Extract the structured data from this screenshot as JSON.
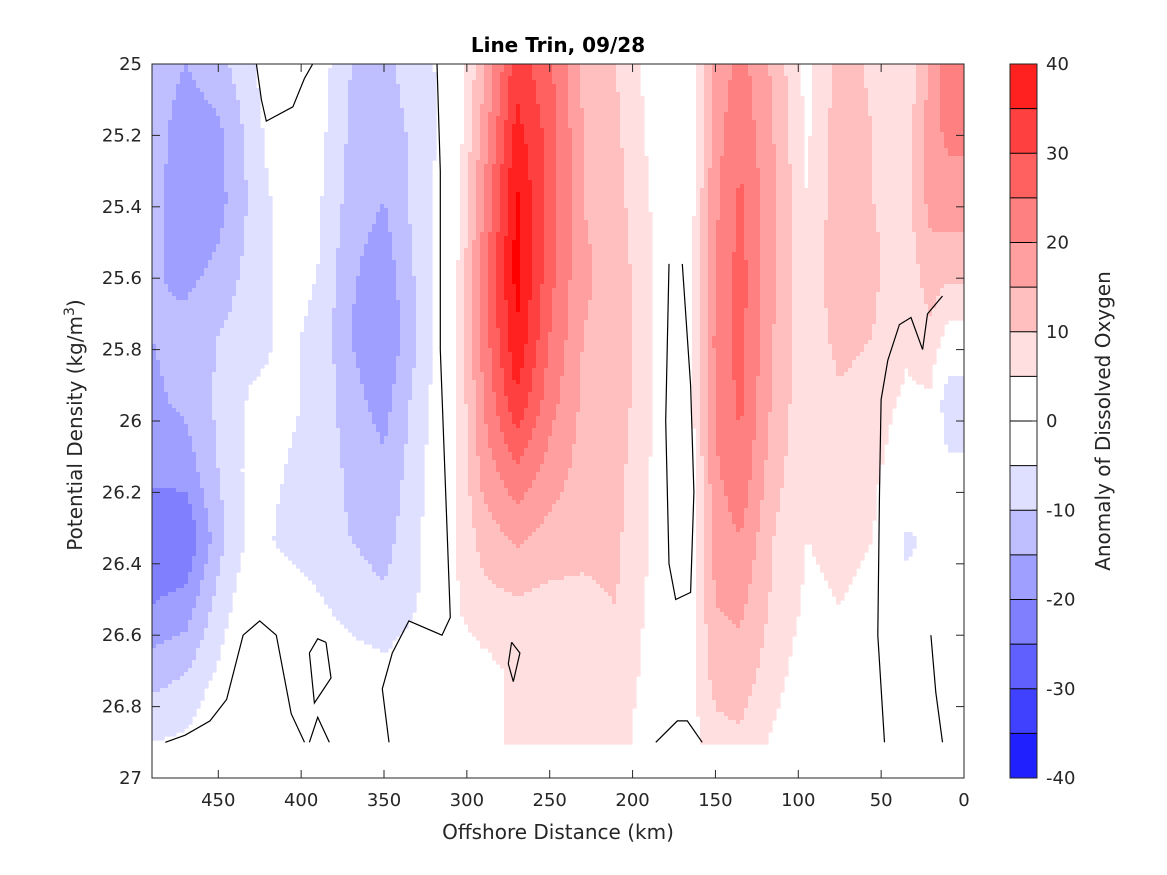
{
  "chart_data": {
    "type": "heatmap",
    "title": "Line Trin, 09/28",
    "xlabel": "Offshore Distance (km)",
    "ylabel": "Potential Density (kg/m",
    "ylabel_sup": "3",
    "ylabel_close": ")",
    "xlim": [
      490,
      0
    ],
    "ylim": [
      25,
      27
    ],
    "x_reversed": true,
    "y_reversed": true,
    "x_ticks": [
      450,
      400,
      350,
      300,
      250,
      200,
      150,
      100,
      50,
      0
    ],
    "y_ticks": [
      25,
      25.2,
      25.4,
      25.6,
      25.8,
      26,
      26.2,
      26.4,
      26.6,
      26.8,
      27
    ],
    "colorbar": {
      "label": "Anomaly of Dissolved Oxygen",
      "limits": [
        -40,
        40
      ],
      "ticks": [
        40,
        30,
        20,
        10,
        0,
        -10,
        -20,
        -30,
        -40
      ],
      "levels": [
        -40,
        -35,
        -30,
        -25,
        -20,
        -15,
        -10,
        -5,
        0,
        5,
        10,
        15,
        20,
        25,
        30,
        35,
        40
      ],
      "colors": [
        "#0000ff",
        "#2020ff",
        "#4040ff",
        "#6060ff",
        "#8080ff",
        "#9f9fff",
        "#bfbfff",
        "#dfdfff",
        "#ffffff",
        "#ffffff",
        "#ffdfdf",
        "#ffbfbf",
        "#ff9f9f",
        "#ff8080",
        "#ff6060",
        "#ff4040",
        "#ff2020",
        "#ff0000"
      ]
    },
    "data_max_density": 26.9,
    "grid": false,
    "columns": [
      {
        "x": 490,
        "values": [
          -12,
          -12,
          -13,
          -14,
          -15,
          -16,
          -19,
          -23,
          -20,
          -12,
          -5
        ]
      },
      {
        "x": 470,
        "values": [
          -15,
          -18,
          -19,
          -17,
          -13,
          -14,
          -18,
          -25,
          -18,
          -10,
          -4
        ]
      },
      {
        "x": 450,
        "values": [
          -12,
          -16,
          -17,
          -14,
          -10,
          -9,
          -10,
          -12,
          -8,
          -4,
          1
        ]
      },
      {
        "x": 430,
        "values": [
          -6,
          -8,
          -9,
          -8,
          -7,
          -4,
          -3,
          -3,
          0,
          2,
          4
        ]
      },
      {
        "x": 410,
        "values": [
          2,
          1,
          -2,
          -3,
          -4,
          -4,
          -5,
          -6,
          -2,
          0,
          1
        ]
      },
      {
        "x": 390,
        "values": [
          -2,
          -3,
          -4,
          -5,
          -6,
          -6,
          -7,
          -8,
          -4,
          -1,
          0
        ]
      },
      {
        "x": 370,
        "values": [
          -10,
          -11,
          -12,
          -14,
          -15,
          -13,
          -11,
          -10,
          -7,
          -2,
          -1
        ]
      },
      {
        "x": 350,
        "values": [
          -11,
          -12,
          -15,
          -18,
          -20,
          -17,
          -14,
          -12,
          -9,
          -3,
          -1
        ]
      },
      {
        "x": 330,
        "values": [
          -8,
          -9,
          -8,
          -9,
          -10,
          -8,
          -7,
          -6,
          -5,
          -1,
          1
        ]
      },
      {
        "x": 310,
        "values": [
          -2,
          -2,
          -1,
          0,
          0,
          1,
          2,
          3,
          4,
          2,
          1
        ]
      },
      {
        "x": 290,
        "values": [
          14,
          17,
          20,
          22,
          22,
          20,
          17,
          12,
          8,
          3,
          2
        ]
      },
      {
        "x": 270,
        "values": [
          33,
          37,
          41,
          42,
          40,
          34,
          24,
          16,
          9,
          6,
          7
        ]
      },
      {
        "x": 250,
        "values": [
          26,
          28,
          28,
          27,
          25,
          22,
          18,
          13,
          8,
          8,
          10
        ]
      },
      {
        "x": 230,
        "values": [
          14,
          15,
          15,
          16,
          15,
          14,
          13,
          11,
          9,
          9,
          10
        ]
      },
      {
        "x": 210,
        "values": [
          10,
          11,
          12,
          13,
          13,
          13,
          12,
          11,
          10,
          9,
          8
        ]
      },
      {
        "x": 190,
        "values": [
          3,
          4,
          5,
          6,
          6,
          6,
          5,
          5,
          4,
          3,
          1
        ]
      },
      {
        "x": 170,
        "values": [
          -2,
          -3,
          -3,
          -2,
          -2,
          -3,
          -4,
          -2,
          -1,
          1,
          1
        ]
      },
      {
        "x": 150,
        "values": [
          16,
          18,
          19,
          20,
          21,
          21,
          19,
          17,
          15,
          12,
          8
        ]
      },
      {
        "x": 135,
        "values": [
          22,
          24,
          26,
          27,
          27,
          26,
          24,
          20,
          16,
          13,
          9
        ]
      },
      {
        "x": 115,
        "values": [
          14,
          15,
          16,
          16,
          15,
          14,
          12,
          10,
          9,
          7,
          4
        ]
      },
      {
        "x": 95,
        "values": [
          3,
          4,
          5,
          6,
          6,
          6,
          6,
          5,
          4,
          2,
          1
        ]
      },
      {
        "x": 75,
        "values": [
          12,
          13,
          13,
          14,
          12,
          9,
          7,
          6,
          5,
          3,
          2
        ]
      },
      {
        "x": 55,
        "values": [
          9,
          10,
          10,
          11,
          10,
          7,
          6,
          5,
          4,
          2,
          1
        ]
      },
      {
        "x": 35,
        "values": [
          6,
          7,
          8,
          7,
          6,
          4,
          2,
          -6,
          -3,
          0,
          1
        ]
      },
      {
        "x": 20,
        "values": [
          16,
          18,
          17,
          13,
          9,
          4,
          0,
          -4,
          -2,
          1,
          1
        ]
      },
      {
        "x": 10,
        "values": [
          22,
          21,
          18,
          12,
          3,
          -10,
          -3,
          -1,
          0,
          1,
          1
        ]
      }
    ],
    "zero_contours": [
      [
        [
          427,
          25.0
        ],
        [
          424,
          25.1
        ],
        [
          421,
          25.16
        ],
        [
          405,
          25.12
        ],
        [
          398,
          25.04
        ],
        [
          393,
          25.0
        ]
      ],
      [
        [
          318,
          25.0
        ],
        [
          316,
          25.3
        ],
        [
          316,
          25.8
        ],
        [
          312,
          26.3
        ],
        [
          310,
          26.55
        ],
        [
          315,
          26.6
        ],
        [
          335,
          26.56
        ],
        [
          345,
          26.65
        ],
        [
          351,
          26.75
        ],
        [
          347,
          26.9
        ]
      ],
      [
        [
          186,
          26.9
        ],
        [
          173,
          26.84
        ],
        [
          167,
          26.84
        ],
        [
          158,
          26.9
        ]
      ],
      [
        [
          178,
          25.56
        ],
        [
          180,
          26.0
        ],
        [
          178,
          26.4
        ],
        [
          174,
          26.5
        ],
        [
          165,
          26.48
        ],
        [
          163,
          26.2
        ],
        [
          165,
          25.9
        ],
        [
          170,
          25.56
        ]
      ],
      [
        [
          48,
          26.9
        ],
        [
          52,
          26.6
        ],
        [
          51,
          26.2
        ],
        [
          50,
          25.94
        ],
        [
          46,
          25.83
        ],
        [
          39,
          25.73
        ],
        [
          32,
          25.71
        ],
        [
          25,
          25.8
        ],
        [
          22,
          25.7
        ],
        [
          13,
          25.65
        ]
      ],
      [
        [
          20,
          26.6
        ],
        [
          17,
          26.76
        ],
        [
          13,
          26.9
        ]
      ],
      [
        [
          482,
          26.9
        ],
        [
          470,
          26.88
        ],
        [
          455,
          26.84
        ],
        [
          445,
          26.78
        ],
        [
          435,
          26.6
        ],
        [
          425,
          26.56
        ],
        [
          415,
          26.6
        ],
        [
          406,
          26.82
        ],
        [
          398,
          26.9
        ]
      ],
      [
        [
          395,
          26.9
        ],
        [
          390,
          26.83
        ],
        [
          383,
          26.9
        ]
      ],
      [
        [
          385,
          26.62
        ],
        [
          382,
          26.72
        ],
        [
          392,
          26.79
        ],
        [
          395,
          26.65
        ],
        [
          390,
          26.61
        ],
        [
          385,
          26.62
        ]
      ],
      [
        [
          273,
          26.62
        ],
        [
          268,
          26.65
        ],
        [
          272,
          26.73
        ],
        [
          275,
          26.68
        ],
        [
          273,
          26.62
        ]
      ]
    ]
  }
}
